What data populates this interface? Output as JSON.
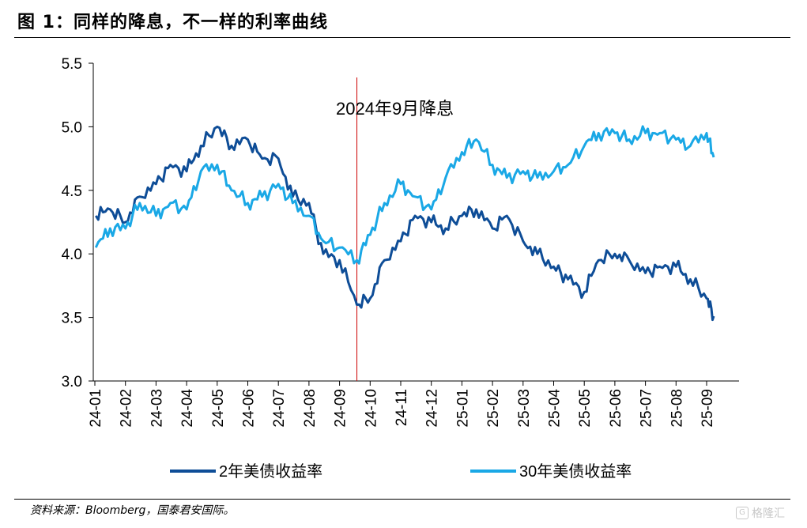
{
  "figure_title": "图 1：同样的降息，不一样的利率曲线",
  "source": "资料来源：Bloomberg，国泰君安国际。",
  "watermark": "格隆汇",
  "chart_data": {
    "type": "line",
    "annotation": {
      "text": "2024年9月降息",
      "x": "2024-09-18"
    },
    "ylim": [
      3.0,
      5.5
    ],
    "yticks": [
      "5.5",
      "5.0",
      "4.5",
      "4.0",
      "3.5",
      "3.0"
    ],
    "xticks": [
      "24-01",
      "24-02",
      "24-03",
      "24-04",
      "24-05",
      "24-06",
      "24-07",
      "24-08",
      "24-09",
      "24-10",
      "24-11",
      "24-12",
      "25-01",
      "25-02",
      "25-03",
      "25-04",
      "25-05",
      "25-06",
      "25-07",
      "25-08",
      "25-09"
    ],
    "legend_position": "bottom",
    "colors": {
      "two_year": "#0e4d97",
      "thirty_year": "#1aa8e6",
      "annotation_line": "#cc0000"
    },
    "series": [
      {
        "name": "2年美债收益率",
        "x": [
          "2024-01-02",
          "2024-01-16",
          "2024-02-01",
          "2024-02-15",
          "2024-03-01",
          "2024-03-15",
          "2024-04-01",
          "2024-04-15",
          "2024-05-01",
          "2024-05-15",
          "2024-06-01",
          "2024-06-15",
          "2024-07-01",
          "2024-07-15",
          "2024-08-01",
          "2024-08-15",
          "2024-09-01",
          "2024-09-18",
          "2024-10-01",
          "2024-10-15",
          "2024-11-01",
          "2024-11-15",
          "2024-12-01",
          "2024-12-15",
          "2025-01-01",
          "2025-01-15",
          "2025-02-01",
          "2025-02-15",
          "2025-03-01",
          "2025-03-15",
          "2025-04-01",
          "2025-04-15",
          "2025-05-01",
          "2025-05-15",
          "2025-06-01",
          "2025-06-15",
          "2025-07-01",
          "2025-07-15",
          "2025-08-01",
          "2025-08-15",
          "2025-09-01",
          "2025-09-08"
        ],
        "values": [
          4.3,
          4.35,
          4.25,
          4.45,
          4.55,
          4.7,
          4.65,
          4.85,
          5.0,
          4.85,
          4.9,
          4.75,
          4.75,
          4.45,
          4.4,
          4.0,
          3.95,
          3.6,
          3.65,
          3.95,
          4.1,
          4.3,
          4.25,
          4.2,
          4.3,
          4.35,
          4.2,
          4.3,
          4.1,
          4.0,
          3.9,
          3.8,
          3.7,
          3.95,
          4.0,
          3.95,
          3.85,
          3.9,
          3.9,
          3.8,
          3.65,
          3.51
        ]
      },
      {
        "name": "30年美债收益率",
        "x": [
          "2024-01-02",
          "2024-01-16",
          "2024-02-01",
          "2024-02-15",
          "2024-03-01",
          "2024-03-15",
          "2024-04-01",
          "2024-04-15",
          "2024-05-01",
          "2024-05-15",
          "2024-06-01",
          "2024-06-15",
          "2024-07-01",
          "2024-07-15",
          "2024-08-01",
          "2024-08-15",
          "2024-09-01",
          "2024-09-18",
          "2024-10-01",
          "2024-10-15",
          "2024-11-01",
          "2024-11-15",
          "2024-12-01",
          "2024-12-15",
          "2025-01-01",
          "2025-01-15",
          "2025-02-01",
          "2025-02-15",
          "2025-03-01",
          "2025-03-15",
          "2025-04-01",
          "2025-04-15",
          "2025-05-01",
          "2025-05-15",
          "2025-06-01",
          "2025-06-15",
          "2025-07-01",
          "2025-07-15",
          "2025-08-01",
          "2025-08-15",
          "2025-09-01",
          "2025-09-08"
        ],
        "values": [
          4.05,
          4.2,
          4.2,
          4.4,
          4.3,
          4.4,
          4.35,
          4.65,
          4.7,
          4.5,
          4.4,
          4.45,
          4.55,
          4.4,
          4.3,
          4.1,
          4.05,
          3.95,
          4.15,
          4.4,
          4.55,
          4.45,
          4.35,
          4.6,
          4.8,
          4.9,
          4.7,
          4.6,
          4.65,
          4.6,
          4.65,
          4.7,
          4.85,
          4.95,
          4.95,
          4.9,
          4.95,
          4.95,
          4.9,
          4.85,
          4.95,
          4.76
        ]
      }
    ]
  }
}
